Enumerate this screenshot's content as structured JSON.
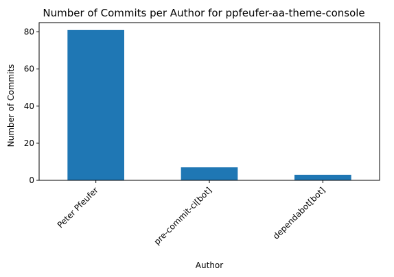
{
  "chart_data": {
    "type": "bar",
    "title": "Number of Commits per Author for ppfeufer-aa-theme-console",
    "xlabel": "Author",
    "ylabel": "Number of Commits",
    "categories": [
      "Peter Pfeufer",
      "pre-commit-ci[bot]",
      "dependabot[bot]"
    ],
    "values": [
      81,
      7,
      3
    ],
    "ylim": [
      0,
      85
    ],
    "yticks": [
      0,
      20,
      40,
      60,
      80
    ],
    "grid": false,
    "legend": "none",
    "colors": {
      "bar": "#1f77b4",
      "axes": "#000000",
      "background": "#ffffff"
    }
  }
}
